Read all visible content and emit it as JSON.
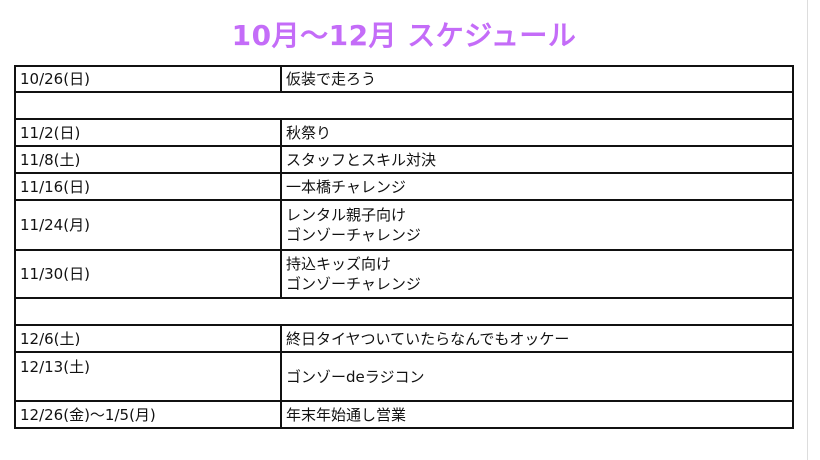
{
  "title": "10月〜12月 スケジュール",
  "colors": {
    "title": "#c46cf8"
  },
  "rows": [
    {
      "date": "10/26(日)",
      "event": [
        "仮装で走ろう"
      ]
    },
    {
      "blank": true
    },
    {
      "date": "11/2(日)",
      "event": [
        "秋祭り"
      ]
    },
    {
      "date": "11/8(土)",
      "event": [
        "スタッフとスキル対決"
      ]
    },
    {
      "date": "11/16(日)",
      "event": [
        "一本橋チャレンジ"
      ]
    },
    {
      "date": "11/24(月)",
      "event": [
        "レンタル親子向け",
        "ゴンゾーチャレンジ"
      ]
    },
    {
      "date": "11/30(日)",
      "event": [
        "持込キッズ向け",
        "ゴンゾーチャレンジ"
      ]
    },
    {
      "blank": true
    },
    {
      "date": "12/6(土)",
      "event": [
        "終日タイヤついていたらなんでもオッケー"
      ]
    },
    {
      "date": "12/13(土)",
      "event": [
        "ゴンゾーdeラジコン"
      ],
      "tall": true
    },
    {
      "date": "12/26(金)〜1/5(月)",
      "event": [
        "年末年始通し営業"
      ]
    }
  ]
}
